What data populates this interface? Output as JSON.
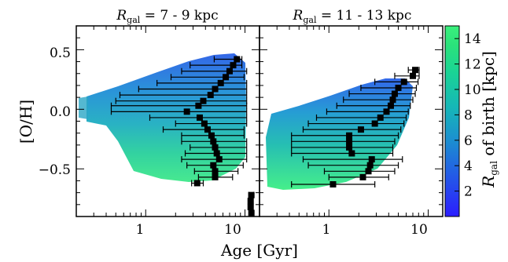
{
  "chart_data": [
    {
      "type": "scatter",
      "title_var": "R",
      "title_sub": "gal",
      "title_rest": " = 7 - 9 kpc",
      "xlabel": "Age [Gyr]",
      "ylabel": "[O/H]",
      "xscale": "log",
      "xlim": [
        0.2,
        14
      ],
      "ylim": [
        -0.9,
        0.7
      ],
      "xticks": [
        1,
        10
      ],
      "xtick_labels": [
        "1",
        "10"
      ],
      "yticks": [
        0.5,
        0.0,
        -0.5
      ],
      "ytick_labels": [
        "0.5",
        "0.0",
        "−0.5"
      ],
      "binned_points": [
        {
          "x": 8.3,
          "y": 0.42,
          "xlo": 4.9,
          "xhi": 9.3
        },
        {
          "x": 7.6,
          "y": 0.37,
          "xlo": 2.8,
          "xhi": 9.3
        },
        {
          "x": 7.0,
          "y": 0.32,
          "xlo": 2.3,
          "xhi": 10.4
        },
        {
          "x": 6.4,
          "y": 0.27,
          "xlo": 1.8,
          "xhi": 9.8
        },
        {
          "x": 5.7,
          "y": 0.22,
          "xlo": 1.3,
          "xhi": 10.4
        },
        {
          "x": 5.0,
          "y": 0.17,
          "xlo": 0.85,
          "xhi": 10.4
        },
        {
          "x": 4.5,
          "y": 0.12,
          "xlo": 0.55,
          "xhi": 10.4
        },
        {
          "x": 3.8,
          "y": 0.07,
          "xlo": 0.5,
          "xhi": 10.4
        },
        {
          "x": 3.4,
          "y": 0.03,
          "xlo": 0.45,
          "xhi": 10.4
        },
        {
          "x": 2.6,
          "y": -0.02,
          "xlo": 0.45,
          "xhi": 10.4
        },
        {
          "x": 3.5,
          "y": -0.07,
          "xlo": 1.1,
          "xhi": 10.4
        },
        {
          "x": 3.9,
          "y": -0.12,
          "xlo": 2.0,
          "xhi": 10.4
        },
        {
          "x": 4.2,
          "y": -0.17,
          "xlo": 1.5,
          "xhi": 9.8
        },
        {
          "x": 4.6,
          "y": -0.22,
          "xlo": 2.3,
          "xhi": 9.8
        },
        {
          "x": 4.8,
          "y": -0.27,
          "xlo": 2.3,
          "xhi": 10.4
        },
        {
          "x": 5.0,
          "y": -0.32,
          "xlo": 2.8,
          "xhi": 10.4
        },
        {
          "x": 5.2,
          "y": -0.37,
          "xlo": 2.5,
          "xhi": 10.4
        },
        {
          "x": 5.5,
          "y": -0.42,
          "xlo": 2.3,
          "xhi": 10.4
        },
        {
          "x": 4.8,
          "y": -0.47,
          "xlo": 2.6,
          "xhi": 9.6
        },
        {
          "x": 5.0,
          "y": -0.52,
          "xlo": 3.1,
          "xhi": 8.5
        },
        {
          "x": 5.0,
          "y": -0.57,
          "xlo": 3.4,
          "xhi": 7.5
        },
        {
          "x": 3.3,
          "y": -0.62,
          "xlo": 2.9,
          "xhi": 3.8
        },
        {
          "x": 11.6,
          "y": -0.72,
          "xlo": 10.9,
          "xhi": 12.2
        },
        {
          "x": 11.4,
          "y": -0.77,
          "xlo": 10.8,
          "xhi": 11.9
        },
        {
          "x": 11.4,
          "y": -0.82,
          "xlo": 10.8,
          "xhi": 11.9
        },
        {
          "x": 11.6,
          "y": -0.87,
          "xlo": 11.0,
          "xhi": 12.2
        }
      ]
    },
    {
      "type": "scatter",
      "title_var": "R",
      "title_sub": "gal",
      "title_rest": " = 11 - 13 kpc",
      "xscale": "log",
      "xlim": [
        0.2,
        14
      ],
      "ylim": [
        -0.9,
        0.7
      ],
      "xticks": [
        1,
        10
      ],
      "xtick_labels": [
        "1",
        "10"
      ],
      "binned_points": [
        {
          "x": 7.4,
          "y": 0.33,
          "xlo": 6.3,
          "xhi": 8.1
        },
        {
          "x": 7.0,
          "y": 0.28,
          "xlo": 4.6,
          "xhi": 8.1
        },
        {
          "x": 5.7,
          "y": 0.23,
          "xlo": 2.9,
          "xhi": 7.9
        },
        {
          "x": 5.0,
          "y": 0.18,
          "xlo": 2.1,
          "xhi": 7.6
        },
        {
          "x": 4.6,
          "y": 0.13,
          "xlo": 1.6,
          "xhi": 7.4
        },
        {
          "x": 4.4,
          "y": 0.08,
          "xlo": 1.4,
          "xhi": 7.0
        },
        {
          "x": 4.2,
          "y": 0.03,
          "xlo": 1.2,
          "xhi": 6.6
        },
        {
          "x": 3.8,
          "y": -0.02,
          "xlo": 0.95,
          "xhi": 6.3
        },
        {
          "x": 3.3,
          "y": -0.07,
          "xlo": 0.75,
          "xhi": 6.0
        },
        {
          "x": 2.9,
          "y": -0.12,
          "xlo": 0.62,
          "xhi": 5.7
        },
        {
          "x": 2.1,
          "y": -0.17,
          "xlo": 0.55,
          "xhi": 5.3
        },
        {
          "x": 1.6,
          "y": -0.22,
          "xlo": 0.42,
          "xhi": 5.0
        },
        {
          "x": 1.6,
          "y": -0.27,
          "xlo": 0.42,
          "xhi": 4.6
        },
        {
          "x": 1.6,
          "y": -0.32,
          "xlo": 0.42,
          "xhi": 4.4
        },
        {
          "x": 1.7,
          "y": -0.37,
          "xlo": 0.42,
          "xhi": 4.4
        },
        {
          "x": 2.7,
          "y": -0.42,
          "xlo": 0.55,
          "xhi": 5.5
        },
        {
          "x": 2.6,
          "y": -0.47,
          "xlo": 0.62,
          "xhi": 5.0
        },
        {
          "x": 2.5,
          "y": -0.52,
          "xlo": 0.9,
          "xhi": 4.6
        },
        {
          "x": 2.2,
          "y": -0.57,
          "xlo": 1.0,
          "xhi": 4.0
        },
        {
          "x": 1.1,
          "y": -0.63,
          "xlo": 0.42,
          "xhi": 2.9
        }
      ]
    }
  ],
  "colorbar": {
    "label_var": "R",
    "label_sub": "gal",
    "label_rest": " of birth [kpc]",
    "range": [
      0,
      15
    ],
    "ticks": [
      2,
      4,
      6,
      8,
      10,
      12,
      14
    ],
    "tick_labels": [
      "2",
      "4",
      "6",
      "8",
      "10",
      "12",
      "14"
    ],
    "colormap": [
      "#2b1dff",
      "#2456e8",
      "#1c8fd0",
      "#16b8b6",
      "#1ad396",
      "#2be27b",
      "#3af07c"
    ]
  }
}
